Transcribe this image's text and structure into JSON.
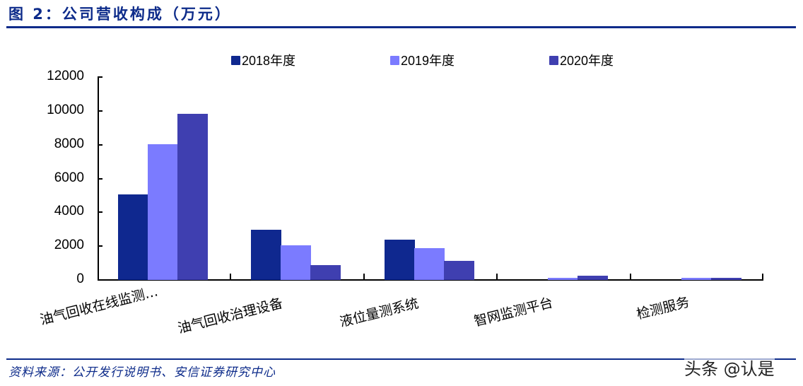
{
  "header": {
    "title": "图 2：公司营收构成（万元）"
  },
  "footer": {
    "source": "资料来源：公开发行说明书、安信证券研究中心",
    "watermark": "头条 @认是"
  },
  "colors": {
    "s2018": "#0f288f",
    "s2019": "#7b7bff",
    "s2020": "#3f3fb0",
    "rule": "#0d2b8a"
  },
  "chart_data": {
    "type": "bar",
    "title": "公司营收构成（万元）",
    "xlabel": "",
    "ylabel": "",
    "ylim": [
      0,
      12000
    ],
    "yticks": [
      "0",
      "2000",
      "4000",
      "6000",
      "8000",
      "10000",
      "12000"
    ],
    "categories": [
      "油气回收在线监测…",
      "油气回收治理设备",
      "液位量测系统",
      "智网监测平台",
      "检测服务"
    ],
    "series": [
      {
        "name": "2018年度",
        "values": [
          5050,
          2970,
          2380,
          0,
          0
        ]
      },
      {
        "name": "2019年度",
        "values": [
          8030,
          2050,
          1880,
          120,
          120
        ]
      },
      {
        "name": "2020年度",
        "values": [
          9830,
          880,
          1130,
          250,
          120
        ]
      }
    ],
    "legend_position": "top",
    "grid": false
  }
}
